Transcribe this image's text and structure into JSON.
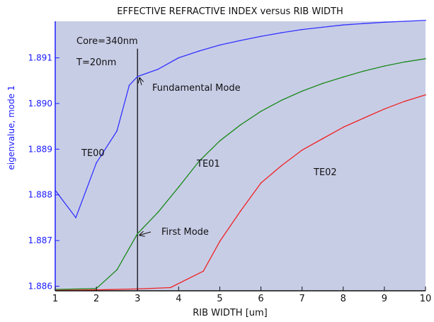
{
  "chart_data": {
    "type": "line",
    "title": "EFFECTIVE REFRACTIVE INDEX versus RIB WIDTH",
    "xlabel": "RIB WIDTH [um]",
    "ylabel": "eigenvalue, mode 1",
    "xlim": [
      1,
      10
    ],
    "ylim": [
      1.8859,
      1.8918
    ],
    "xticks": [
      1,
      2,
      3,
      4,
      5,
      6,
      7,
      8,
      9,
      10
    ],
    "xtick_labels": [
      "1",
      "2",
      "3",
      "4",
      "5",
      "6",
      "7",
      "8",
      "9",
      "10"
    ],
    "yticks": [
      1.886,
      1.887,
      1.888,
      1.889,
      1.89,
      1.891
    ],
    "ytick_labels": [
      "1.886",
      "1.887",
      "1.888",
      "1.889",
      "1.890",
      "1.891"
    ],
    "grid": false,
    "background": "#c8cde6",
    "series": [
      {
        "label": "TE00",
        "color": "#3333ff",
        "x": [
          1,
          1.5,
          2,
          2.5,
          2.8,
          3,
          3.5,
          4,
          4.5,
          5,
          5.5,
          6,
          6.5,
          7,
          7.5,
          8,
          8.5,
          9,
          9.5,
          10
        ],
        "y": [
          1.8881,
          1.8875,
          1.8887,
          1.8894,
          1.8904,
          1.89059,
          1.89075,
          1.891,
          1.89115,
          1.89128,
          1.89138,
          1.89147,
          1.89155,
          1.89162,
          1.89167,
          1.89172,
          1.89175,
          1.89178,
          1.8918,
          1.89182
        ]
      },
      {
        "label": "TE01",
        "color": "#1a8a1a",
        "x": [
          1,
          2,
          2.5,
          3,
          3.5,
          4,
          4.5,
          5,
          5.5,
          6,
          6.5,
          7,
          7.5,
          8,
          8.5,
          9,
          9.5,
          10
        ],
        "y": [
          1.88593,
          1.88595,
          1.88636,
          1.88715,
          1.88762,
          1.88817,
          1.88874,
          1.88918,
          1.88953,
          1.88983,
          1.89007,
          1.89027,
          1.89044,
          1.89058,
          1.89071,
          1.89082,
          1.89091,
          1.89098
        ]
      },
      {
        "label": "TE02",
        "color": "#ee2222",
        "x": [
          1,
          2,
          3,
          3.8,
          4.6,
          5,
          5.5,
          6,
          6.5,
          7,
          7.5,
          8,
          8.5,
          9,
          9.5,
          10
        ],
        "y": [
          1.88591,
          1.88592,
          1.88594,
          1.88597,
          1.88633,
          1.88698,
          1.88764,
          1.88826,
          1.88864,
          1.88898,
          1.88923,
          1.88948,
          1.88968,
          1.88988,
          1.89005,
          1.89019
        ]
      }
    ],
    "annotations": [
      {
        "text": "Core=340nm"
      },
      {
        "text": "T=20nm"
      },
      {
        "text": "Fundamental Mode",
        "arrow_to": [
          3.0,
          1.89059
        ]
      },
      {
        "text": "First Mode",
        "arrow_to": [
          3.0,
          1.88715
        ]
      },
      {
        "text": "TE00",
        "series": 0
      },
      {
        "text": "TE01",
        "series": 1
      },
      {
        "text": "TE02",
        "series": 2
      }
    ],
    "vertical_marker": {
      "x": 3.0,
      "y_from": 1.8859,
      "y_to": 1.8912
    }
  }
}
